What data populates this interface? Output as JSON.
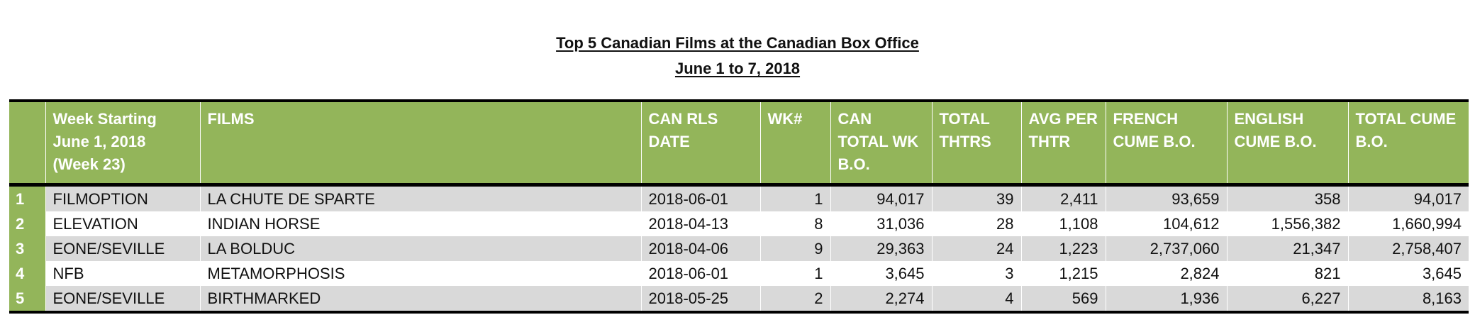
{
  "title": {
    "line1": "Top 5 Canadian Films at the Canadian Box Office",
    "line2": "June 1 to 7, 2018"
  },
  "table": {
    "headers": {
      "rank": "",
      "distributor": "Week Starting June 1, 2018 (Week 23)",
      "films": "FILMS",
      "release_date": "CAN RLS DATE",
      "week_num": "WK#",
      "can_total_wk_bo": "CAN TOTAL WK B.O.",
      "total_thtrs": "TOTAL THTRS",
      "avg_per_thtr": "AVG PER THTR",
      "french_cume_bo": "FRENCH CUME B.O.",
      "english_cume_bo": "ENGLISH CUME B.O.",
      "total_cume_bo": "TOTAL CUME B.O."
    },
    "rows": [
      {
        "rank": "1",
        "distributor": "FILMOPTION",
        "film": "LA CHUTE DE SPARTE",
        "release_date": "2018-06-01",
        "week_num": "1",
        "can_total_wk_bo": "94,017",
        "total_thtrs": "39",
        "avg_per_thtr": "2,411",
        "french_cume_bo": "93,659",
        "english_cume_bo": "358",
        "total_cume_bo": "94,017"
      },
      {
        "rank": "2",
        "distributor": "ELEVATION",
        "film": "INDIAN HORSE",
        "release_date": "2018-04-13",
        "week_num": "8",
        "can_total_wk_bo": "31,036",
        "total_thtrs": "28",
        "avg_per_thtr": "1,108",
        "french_cume_bo": "104,612",
        "english_cume_bo": "1,556,382",
        "total_cume_bo": "1,660,994"
      },
      {
        "rank": "3",
        "distributor": "EONE/SEVILLE",
        "film": "LA BOLDUC",
        "release_date": "2018-04-06",
        "week_num": "9",
        "can_total_wk_bo": "29,363",
        "total_thtrs": "24",
        "avg_per_thtr": "1,223",
        "french_cume_bo": "2,737,060",
        "english_cume_bo": "21,347",
        "total_cume_bo": "2,758,407"
      },
      {
        "rank": "4",
        "distributor": "NFB",
        "film": "METAMORPHOSIS",
        "release_date": "2018-06-01",
        "week_num": "1",
        "can_total_wk_bo": "3,645",
        "total_thtrs": "3",
        "avg_per_thtr": "1,215",
        "french_cume_bo": "2,824",
        "english_cume_bo": "821",
        "total_cume_bo": "3,645"
      },
      {
        "rank": "5",
        "distributor": "EONE/SEVILLE",
        "film": "BIRTHMARKED",
        "release_date": "2018-05-25",
        "week_num": "2",
        "can_total_wk_bo": "2,274",
        "total_thtrs": "4",
        "avg_per_thtr": "569",
        "french_cume_bo": "1,936",
        "english_cume_bo": "6,227",
        "total_cume_bo": "8,163"
      }
    ]
  },
  "colors": {
    "header_green": "#93b55a",
    "row_shade": "#d9d9d9",
    "rule": "#000000"
  }
}
